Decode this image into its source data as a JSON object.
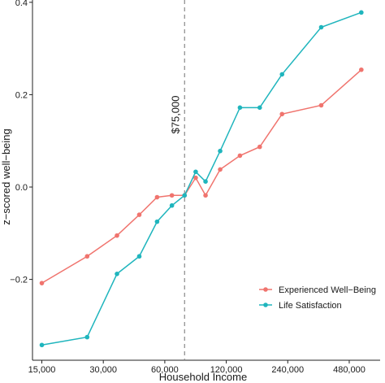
{
  "chart_data": {
    "type": "line",
    "xlabel": "Household Income",
    "ylabel": "z−scored well−being",
    "x_scale": "log",
    "x_ticks": [
      15000,
      30000,
      60000,
      120000,
      240000,
      480000
    ],
    "x_tick_labels": [
      "15,000",
      "30,000",
      "60,000",
      "120,000",
      "240,000",
      "480,000"
    ],
    "y_ticks": [
      -0.2,
      0.0,
      0.2,
      0.4
    ],
    "y_tick_labels": [
      "−0.2",
      "0.0",
      "0.2",
      "0.4"
    ],
    "xlim": [
      13500,
      680000
    ],
    "ylim": [
      -0.375,
      0.405
    ],
    "reference_line": {
      "x": 75000,
      "label": "$75,000",
      "style": "dashed"
    },
    "legend_position": "bottom-right",
    "grid": false,
    "series": [
      {
        "name": "Experienced Well−Being",
        "color": "#F0746E",
        "points": [
          [
            15000,
            -0.208
          ],
          [
            25000,
            -0.15
          ],
          [
            35000,
            -0.105
          ],
          [
            45000,
            -0.06
          ],
          [
            55000,
            -0.022
          ],
          [
            65000,
            -0.018
          ],
          [
            75000,
            -0.018
          ],
          [
            85000,
            0.02
          ],
          [
            95000,
            -0.018
          ],
          [
            112000,
            0.038
          ],
          [
            140000,
            0.068
          ],
          [
            175000,
            0.087
          ],
          [
            225000,
            0.158
          ],
          [
            350000,
            0.177
          ],
          [
            550000,
            0.254
          ]
        ]
      },
      {
        "name": "Life Satisfaction",
        "color": "#1FB5BD",
        "points": [
          [
            15000,
            -0.342
          ],
          [
            25000,
            -0.325
          ],
          [
            35000,
            -0.188
          ],
          [
            45000,
            -0.15
          ],
          [
            55000,
            -0.075
          ],
          [
            65000,
            -0.04
          ],
          [
            75000,
            -0.018
          ],
          [
            85000,
            0.033
          ],
          [
            95000,
            0.012
          ],
          [
            112000,
            0.078
          ],
          [
            140000,
            0.172
          ],
          [
            175000,
            0.172
          ],
          [
            225000,
            0.244
          ],
          [
            350000,
            0.346
          ],
          [
            550000,
            0.378
          ]
        ]
      }
    ]
  }
}
